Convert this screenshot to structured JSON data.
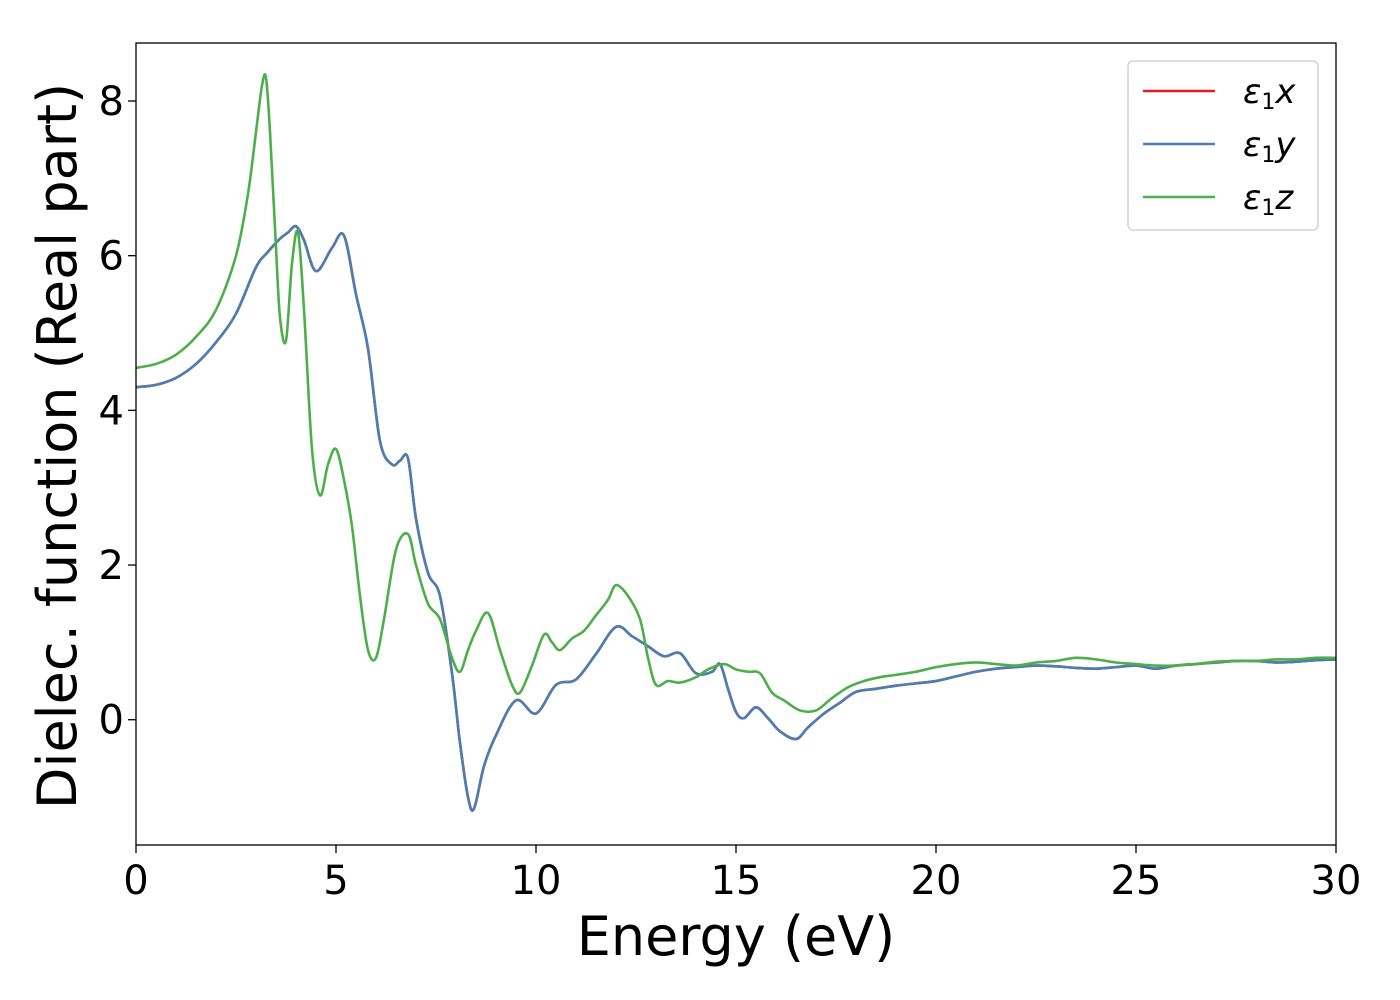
{
  "chart_data": {
    "type": "line",
    "xlabel": "Energy (eV)",
    "ylabel": "Dielec. function (Real part)",
    "xlim": [
      0,
      30
    ],
    "ylim": [
      -1.62,
      8.75
    ],
    "xticks": [
      0,
      5,
      10,
      15,
      20,
      25,
      30
    ],
    "yticks": [
      0,
      2,
      4,
      6,
      8
    ],
    "grid": false,
    "legend_position": "top-right",
    "series": [
      {
        "name": "ε1x",
        "legend": {
          "base": "ε",
          "sub": "1",
          "tail": "x"
        },
        "color": "#e41a1c",
        "x": [
          0,
          0.5,
          1,
          1.5,
          2,
          2.5,
          3,
          3.3,
          3.6,
          3.8,
          4.0,
          4.2,
          4.5,
          4.9,
          5.2,
          5.5,
          5.8,
          6.1,
          6.4,
          6.6,
          6.8,
          7.0,
          7.3,
          7.6,
          7.9,
          8.1,
          8.3,
          8.45,
          8.7,
          9.0,
          9.5,
          10.0,
          10.5,
          11.0,
          11.5,
          12.0,
          12.4,
          12.8,
          13.2,
          13.6,
          14.0,
          14.4,
          14.6,
          14.8,
          15.0,
          15.2,
          15.5,
          15.8,
          16.1,
          16.5,
          16.8,
          17.2,
          17.6,
          18.0,
          18.5,
          19.0,
          19.5,
          20.0,
          20.5,
          21.0,
          21.5,
          22.0,
          22.5,
          23.0,
          23.5,
          24.0,
          24.5,
          25.0,
          25.5,
          26.0,
          26.5,
          27.0,
          27.5,
          28.0,
          28.5,
          29.0,
          29.5,
          30.0
        ],
        "y": [
          4.3,
          4.33,
          4.42,
          4.6,
          4.88,
          5.25,
          5.85,
          6.05,
          6.22,
          6.3,
          6.38,
          6.2,
          5.8,
          6.1,
          6.26,
          5.5,
          4.8,
          3.6,
          3.3,
          3.35,
          3.38,
          2.6,
          1.9,
          1.6,
          0.6,
          -0.3,
          -1.0,
          -1.15,
          -0.6,
          -0.2,
          0.25,
          0.08,
          0.45,
          0.52,
          0.85,
          1.2,
          1.08,
          0.95,
          0.82,
          0.86,
          0.6,
          0.62,
          0.72,
          0.4,
          0.1,
          0.02,
          0.16,
          0.02,
          -0.15,
          -0.25,
          -0.1,
          0.08,
          0.22,
          0.36,
          0.4,
          0.44,
          0.47,
          0.5,
          0.56,
          0.62,
          0.66,
          0.68,
          0.7,
          0.69,
          0.67,
          0.66,
          0.68,
          0.7,
          0.66,
          0.7,
          0.72,
          0.74,
          0.76,
          0.76,
          0.74,
          0.75,
          0.77,
          0.78
        ]
      },
      {
        "name": "ε1y",
        "legend": {
          "base": "ε",
          "sub": "1",
          "tail": "y"
        },
        "color": "#4a7fb3",
        "x": [
          0,
          0.5,
          1,
          1.5,
          2,
          2.5,
          3,
          3.3,
          3.6,
          3.8,
          4.0,
          4.2,
          4.5,
          4.9,
          5.2,
          5.5,
          5.8,
          6.1,
          6.4,
          6.6,
          6.8,
          7.0,
          7.3,
          7.6,
          7.9,
          8.1,
          8.3,
          8.45,
          8.7,
          9.0,
          9.5,
          10.0,
          10.5,
          11.0,
          11.5,
          12.0,
          12.4,
          12.8,
          13.2,
          13.6,
          14.0,
          14.4,
          14.6,
          14.8,
          15.0,
          15.2,
          15.5,
          15.8,
          16.1,
          16.5,
          16.8,
          17.2,
          17.6,
          18.0,
          18.5,
          19.0,
          19.5,
          20.0,
          20.5,
          21.0,
          21.5,
          22.0,
          22.5,
          23.0,
          23.5,
          24.0,
          24.5,
          25.0,
          25.5,
          26.0,
          26.5,
          27.0,
          27.5,
          28.0,
          28.5,
          29.0,
          29.5,
          30.0
        ],
        "y": [
          4.3,
          4.33,
          4.42,
          4.6,
          4.88,
          5.25,
          5.85,
          6.05,
          6.22,
          6.3,
          6.38,
          6.2,
          5.8,
          6.1,
          6.26,
          5.5,
          4.8,
          3.6,
          3.3,
          3.35,
          3.38,
          2.6,
          1.9,
          1.6,
          0.6,
          -0.3,
          -1.0,
          -1.15,
          -0.6,
          -0.2,
          0.25,
          0.08,
          0.45,
          0.52,
          0.85,
          1.2,
          1.08,
          0.95,
          0.82,
          0.86,
          0.6,
          0.62,
          0.72,
          0.4,
          0.1,
          0.02,
          0.16,
          0.02,
          -0.15,
          -0.25,
          -0.1,
          0.08,
          0.22,
          0.36,
          0.4,
          0.44,
          0.47,
          0.5,
          0.56,
          0.62,
          0.66,
          0.68,
          0.7,
          0.69,
          0.67,
          0.66,
          0.68,
          0.7,
          0.66,
          0.7,
          0.72,
          0.74,
          0.76,
          0.76,
          0.74,
          0.75,
          0.77,
          0.78
        ]
      },
      {
        "name": "ε1z",
        "legend": {
          "base": "ε",
          "sub": "1",
          "tail": "z"
        },
        "color": "#4daf4a",
        "x": [
          0,
          0.5,
          1,
          1.5,
          2,
          2.5,
          2.8,
          3.0,
          3.15,
          3.25,
          3.35,
          3.5,
          3.6,
          3.75,
          3.9,
          4.05,
          4.2,
          4.4,
          4.6,
          4.8,
          5.0,
          5.2,
          5.4,
          5.6,
          5.8,
          6.0,
          6.2,
          6.5,
          6.8,
          7.0,
          7.3,
          7.6,
          7.9,
          8.1,
          8.3,
          8.5,
          8.8,
          9.1,
          9.4,
          9.6,
          9.9,
          10.2,
          10.4,
          10.6,
          10.9,
          11.2,
          11.5,
          11.8,
          12.0,
          12.3,
          12.6,
          12.8,
          13.0,
          13.3,
          13.6,
          14.0,
          14.3,
          14.7,
          15.0,
          15.3,
          15.6,
          15.9,
          16.2,
          16.6,
          17.0,
          17.4,
          17.8,
          18.2,
          18.6,
          19.0,
          19.5,
          20.0,
          20.5,
          21.0,
          21.5,
          22.0,
          22.5,
          23.0,
          23.5,
          24.0,
          24.5,
          25.0,
          25.5,
          26.0,
          26.5,
          27.0,
          27.5,
          28.0,
          28.5,
          29.0,
          29.5,
          30.0
        ],
        "y": [
          4.55,
          4.6,
          4.72,
          4.95,
          5.3,
          6.0,
          6.8,
          7.6,
          8.2,
          8.3,
          7.6,
          6.1,
          5.2,
          4.9,
          5.9,
          6.3,
          5.3,
          3.5,
          2.9,
          3.3,
          3.5,
          3.1,
          2.5,
          1.6,
          0.9,
          0.8,
          1.3,
          2.2,
          2.4,
          2.0,
          1.5,
          1.3,
          0.8,
          0.62,
          0.9,
          1.15,
          1.38,
          0.9,
          0.45,
          0.35,
          0.7,
          1.1,
          1.0,
          0.9,
          1.05,
          1.15,
          1.35,
          1.55,
          1.74,
          1.6,
          1.3,
          0.8,
          0.45,
          0.5,
          0.48,
          0.55,
          0.65,
          0.72,
          0.65,
          0.62,
          0.6,
          0.35,
          0.25,
          0.12,
          0.12,
          0.28,
          0.42,
          0.5,
          0.55,
          0.58,
          0.62,
          0.68,
          0.72,
          0.74,
          0.72,
          0.7,
          0.74,
          0.76,
          0.8,
          0.78,
          0.74,
          0.72,
          0.7,
          0.7,
          0.72,
          0.75,
          0.76,
          0.76,
          0.78,
          0.78,
          0.8,
          0.8
        ]
      }
    ]
  }
}
